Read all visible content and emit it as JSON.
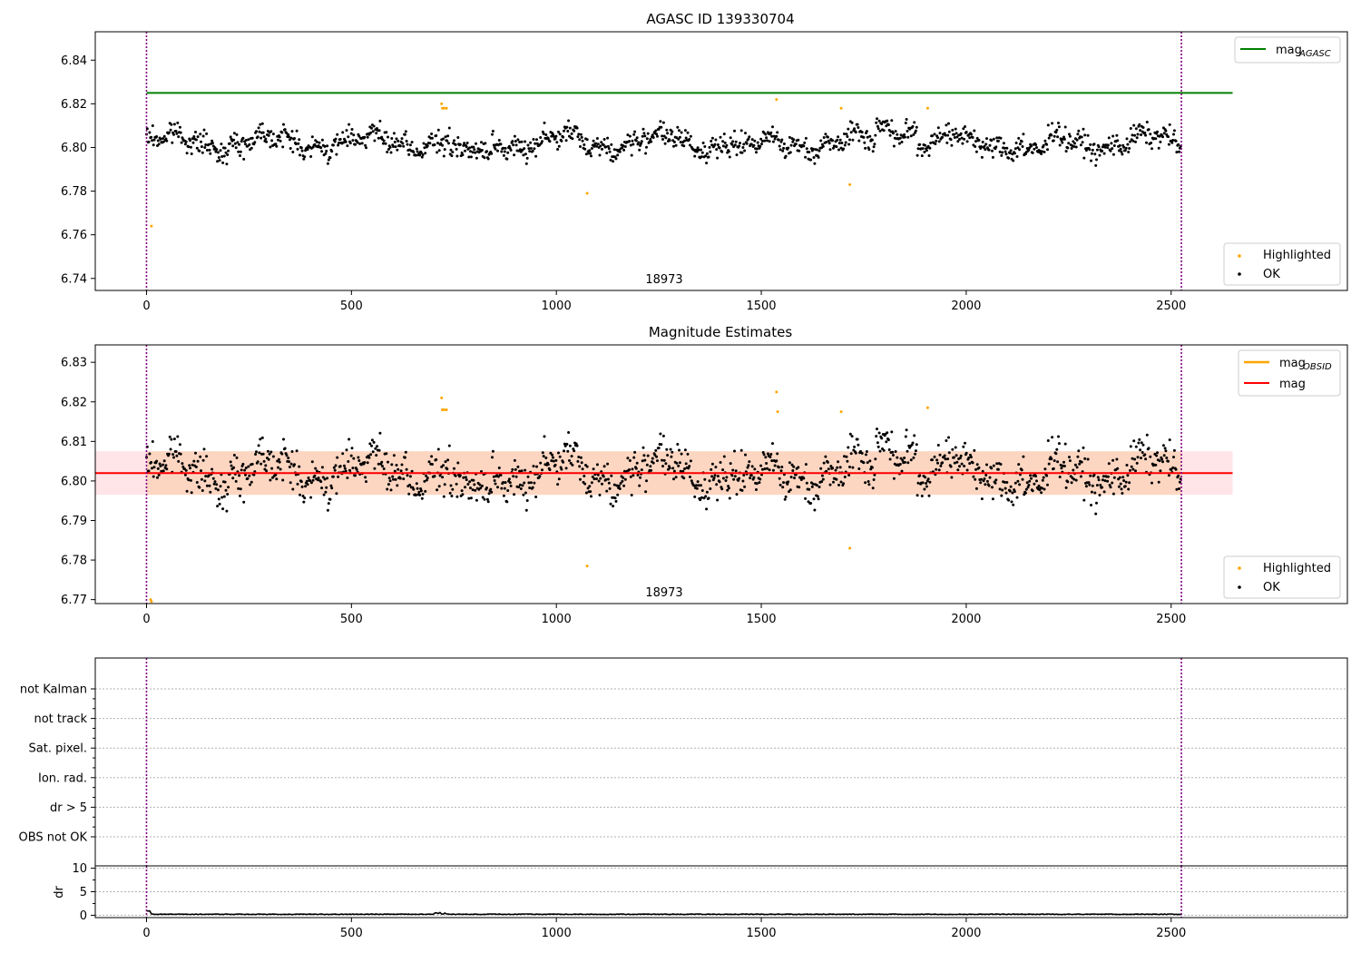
{
  "figure": {
    "title": "AGASC ID 139330704"
  },
  "chart_data": [
    {
      "type": "scatter",
      "title": "",
      "annotation": "18973",
      "xlim": [
        -125,
        2930
      ],
      "ylim": [
        6.7345,
        6.853
      ],
      "xticks": [
        0,
        500,
        1000,
        1500,
        2000,
        2500
      ],
      "yticks": [
        6.74,
        6.76,
        6.78,
        6.8,
        6.82,
        6.84
      ],
      "ytick_decimals": 2,
      "vlines": [
        0,
        2525
      ],
      "hline": {
        "name": "mag_AGASC",
        "y": 6.825,
        "x_range": [
          0,
          2650
        ],
        "color": "#008000"
      },
      "series": [
        {
          "name": "Highlighted",
          "color": "#ffa500",
          "points": [
            [
              12,
              6.764
            ],
            [
              720,
              6.82
            ],
            [
              722,
              6.818
            ],
            [
              726,
              6.818
            ],
            [
              732,
              6.818
            ],
            [
              1075,
              6.779
            ],
            [
              1537,
              6.822
            ],
            [
              1695,
              6.818
            ],
            [
              1716,
              6.783
            ],
            [
              1906,
              6.818
            ]
          ]
        },
        {
          "name": "OK",
          "color": "#000000",
          "generator": "ok_series"
        }
      ],
      "legends": [
        {
          "position": "top-right",
          "entries": [
            {
              "label": "mag",
              "sub": "AGASC",
              "kind": "line",
              "color": "#008000"
            }
          ]
        },
        {
          "position": "bottom-right",
          "entries": [
            {
              "label": "Highlighted",
              "kind": "dot",
              "color": "#ffa500"
            },
            {
              "label": "OK",
              "kind": "dot",
              "color": "#000000"
            }
          ]
        }
      ]
    },
    {
      "type": "scatter",
      "title": "Magnitude Estimates",
      "annotation": "18973",
      "xlim": [
        -125,
        2930
      ],
      "ylim": [
        6.769,
        6.8344
      ],
      "xticks": [
        0,
        500,
        1000,
        1500,
        2000,
        2500
      ],
      "yticks": [
        6.77,
        6.78,
        6.79,
        6.8,
        6.81,
        6.82,
        6.83
      ],
      "ytick_decimals": 2,
      "vlines": [
        0,
        2525
      ],
      "band_outer": {
        "y": [
          6.7965,
          6.8075
        ],
        "x_range": [
          -125,
          2650
        ],
        "color": "#ffe4e8"
      },
      "band_inner": {
        "y": [
          6.7965,
          6.8075
        ],
        "x_range": [
          0,
          2525
        ],
        "color": "#fdd6c2"
      },
      "hline_mag": {
        "name": "mag",
        "y": 6.802,
        "x_range": [
          -125,
          2650
        ],
        "color": "#ff0000"
      },
      "series": [
        {
          "name": "Highlighted",
          "color": "#ffa500",
          "points": [
            [
              10,
              6.77
            ],
            [
              12,
              6.7695
            ],
            [
              720,
              6.821
            ],
            [
              722,
              6.818
            ],
            [
              726,
              6.818
            ],
            [
              732,
              6.818
            ],
            [
              1075,
              6.7785
            ],
            [
              1537,
              6.8225
            ],
            [
              1540,
              6.8175
            ],
            [
              1695,
              6.8175
            ],
            [
              1716,
              6.783
            ],
            [
              1906,
              6.8185
            ]
          ]
        },
        {
          "name": "OK",
          "color": "#000000",
          "generator": "ok_series"
        }
      ],
      "legends": [
        {
          "position": "top-right",
          "entries": [
            {
              "label": "mag",
              "sub": "OBSID",
              "kind": "line",
              "color": "#ffa500"
            },
            {
              "label": "mag",
              "kind": "line",
              "color": "#ff0000"
            }
          ]
        },
        {
          "position": "bottom-right",
          "entries": [
            {
              "label": "Highlighted",
              "kind": "dot",
              "color": "#ffa500"
            },
            {
              "label": "OK",
              "kind": "dot",
              "color": "#000000"
            }
          ]
        }
      ]
    },
    {
      "type": "table",
      "title": "",
      "xlim": [
        -125,
        2930
      ],
      "vlines": [
        0,
        2525
      ],
      "categories": [
        "not Kalman",
        "not track",
        "Sat. pixel.",
        "Ion. rad.",
        "dr > 5",
        "OBS not OK"
      ],
      "flag_counts": [
        0,
        0,
        0,
        0,
        0,
        0
      ]
    },
    {
      "type": "line",
      "title": "",
      "ylabel": "dr",
      "xlim": [
        -125,
        2930
      ],
      "ylim": [
        -0.5,
        10.5
      ],
      "xticks": [
        0,
        500,
        1000,
        1500,
        2000,
        2500
      ],
      "yticks": [
        0,
        5,
        10
      ],
      "ytick_decimals": 0,
      "vlines": [
        0,
        2525
      ],
      "series": [
        {
          "name": "dr",
          "color": "#000000",
          "generator": "dr_series"
        }
      ]
    }
  ]
}
